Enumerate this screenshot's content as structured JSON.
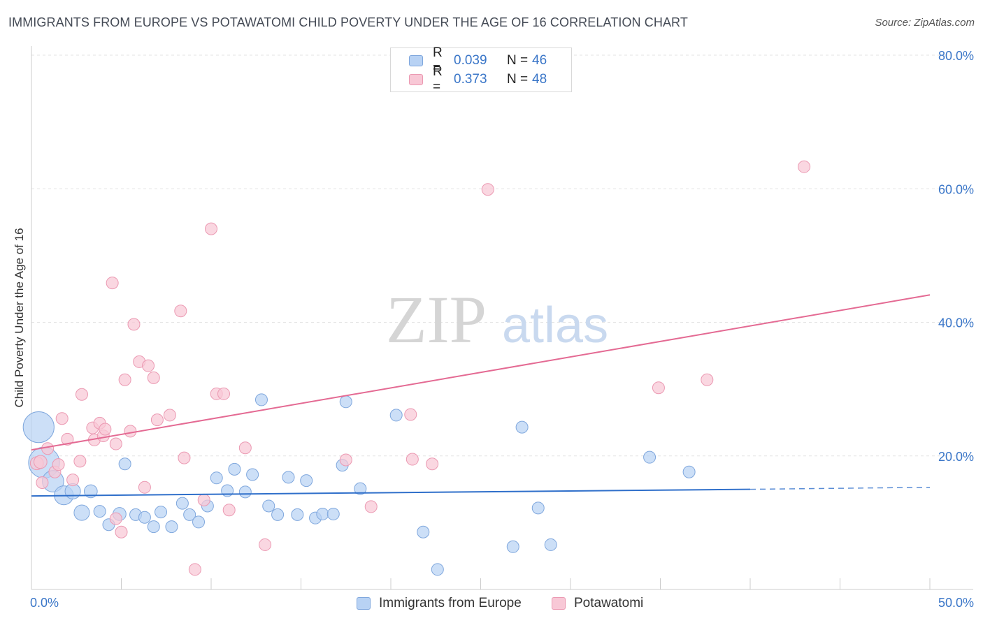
{
  "title": "IMMIGRANTS FROM EUROPE VS POTAWATOMI CHILD POVERTY UNDER THE AGE OF 16 CORRELATION CHART",
  "source": "Source: ZipAtlas.com",
  "watermark": {
    "zip": "ZIP",
    "atlas": "atlas"
  },
  "legend": {
    "r_label": "R =",
    "n_label": "N =",
    "series1": {
      "r": "0.039",
      "n": "46"
    },
    "series2": {
      "r": "0.373",
      "n": "48"
    }
  },
  "colors": {
    "europe_fill": "#b8d2f4",
    "europe_stroke": "#7fa7dd",
    "europe_line": "#2f6fca",
    "potawatomi_fill": "#f8c8d6",
    "potawatomi_stroke": "#eb99b2",
    "potawatomi_line": "#e46a93",
    "tick_text": "#3a76c8"
  },
  "chart_data": {
    "type": "scatter",
    "title": "IMMIGRANTS FROM EUROPE VS POTAWATOMI CHILD POVERTY UNDER THE AGE OF 16 CORRELATION CHART",
    "xlabel": "",
    "ylabel": "Child Poverty Under the Age of 16",
    "xlim": [
      0,
      50
    ],
    "ylim": [
      0,
      80
    ],
    "x_tick_labels": [
      "0.0%",
      "50.0%"
    ],
    "y_ticks": [
      20,
      40,
      60,
      80
    ],
    "y_tick_labels": [
      "20.0%",
      "40.0%",
      "60.0%",
      "80.0%"
    ],
    "grid": true,
    "legend_position": "top-center",
    "series": [
      {
        "name": "Immigrants from Europe",
        "r": 0.039,
        "n": 46,
        "trend": {
          "x0": 0,
          "y0": 14.0,
          "x1": 40,
          "y1": 15.0,
          "dashed_to": 50,
          "dashed_y": 15.3
        },
        "points": [
          {
            "x": 0.4,
            "y": 24.3,
            "s": 2.6
          },
          {
            "x": 0.7,
            "y": 19.0,
            "s": 2.6
          },
          {
            "x": 1.2,
            "y": 16.2,
            "s": 1.8
          },
          {
            "x": 1.8,
            "y": 14.1,
            "s": 1.6
          },
          {
            "x": 2.3,
            "y": 14.7,
            "s": 1.3
          },
          {
            "x": 2.8,
            "y": 11.5,
            "s": 1.3
          },
          {
            "x": 3.3,
            "y": 14.7,
            "s": 1.1
          },
          {
            "x": 3.8,
            "y": 11.7,
            "s": 1.0
          },
          {
            "x": 4.3,
            "y": 9.7,
            "s": 1.0
          },
          {
            "x": 4.9,
            "y": 11.3,
            "s": 1.1
          },
          {
            "x": 5.2,
            "y": 18.8,
            "s": 1.0
          },
          {
            "x": 5.8,
            "y": 11.2,
            "s": 1.0
          },
          {
            "x": 6.3,
            "y": 10.8,
            "s": 1.0
          },
          {
            "x": 6.8,
            "y": 9.4,
            "s": 1.0
          },
          {
            "x": 7.2,
            "y": 11.6,
            "s": 1.0
          },
          {
            "x": 7.8,
            "y": 9.4,
            "s": 1.0
          },
          {
            "x": 8.4,
            "y": 12.9,
            "s": 1.0
          },
          {
            "x": 8.8,
            "y": 11.2,
            "s": 1.0
          },
          {
            "x": 9.3,
            "y": 10.1,
            "s": 1.0
          },
          {
            "x": 9.8,
            "y": 12.5,
            "s": 1.0
          },
          {
            "x": 10.3,
            "y": 16.7,
            "s": 1.0
          },
          {
            "x": 10.9,
            "y": 14.8,
            "s": 1.0
          },
          {
            "x": 11.3,
            "y": 18.0,
            "s": 1.0
          },
          {
            "x": 11.9,
            "y": 14.6,
            "s": 1.0
          },
          {
            "x": 12.3,
            "y": 17.2,
            "s": 1.0
          },
          {
            "x": 12.8,
            "y": 28.4,
            "s": 1.0
          },
          {
            "x": 13.2,
            "y": 12.5,
            "s": 1.0
          },
          {
            "x": 13.7,
            "y": 11.2,
            "s": 1.0
          },
          {
            "x": 14.3,
            "y": 16.8,
            "s": 1.0
          },
          {
            "x": 14.8,
            "y": 11.2,
            "s": 1.0
          },
          {
            "x": 15.3,
            "y": 16.3,
            "s": 1.0
          },
          {
            "x": 15.8,
            "y": 10.7,
            "s": 1.0
          },
          {
            "x": 16.2,
            "y": 11.3,
            "s": 1.0
          },
          {
            "x": 16.8,
            "y": 11.3,
            "s": 1.0
          },
          {
            "x": 17.3,
            "y": 18.6,
            "s": 1.0
          },
          {
            "x": 17.5,
            "y": 28.1,
            "s": 1.0
          },
          {
            "x": 18.3,
            "y": 15.1,
            "s": 1.0
          },
          {
            "x": 20.3,
            "y": 26.1,
            "s": 1.0
          },
          {
            "x": 21.8,
            "y": 8.6,
            "s": 1.0
          },
          {
            "x": 22.6,
            "y": 3.0,
            "s": 1.0
          },
          {
            "x": 26.8,
            "y": 6.4,
            "s": 1.0
          },
          {
            "x": 27.3,
            "y": 24.3,
            "s": 1.0
          },
          {
            "x": 28.2,
            "y": 12.2,
            "s": 1.0
          },
          {
            "x": 28.9,
            "y": 6.7,
            "s": 1.0
          },
          {
            "x": 34.4,
            "y": 19.8,
            "s": 1.0
          },
          {
            "x": 36.6,
            "y": 17.6,
            "s": 1.0
          }
        ]
      },
      {
        "name": "Potawatomi",
        "r": 0.373,
        "n": 48,
        "trend": {
          "x0": 0,
          "y0": 20.9,
          "x1": 50,
          "y1": 44.1
        },
        "points": [
          {
            "x": 0.3,
            "y": 18.9,
            "s": 1.1
          },
          {
            "x": 0.5,
            "y": 19.1,
            "s": 1.1
          },
          {
            "x": 0.6,
            "y": 16.0,
            "s": 1.0
          },
          {
            "x": 0.9,
            "y": 21.1,
            "s": 1.0
          },
          {
            "x": 1.3,
            "y": 17.6,
            "s": 1.0
          },
          {
            "x": 1.5,
            "y": 18.7,
            "s": 1.0
          },
          {
            "x": 1.7,
            "y": 25.6,
            "s": 1.0
          },
          {
            "x": 2.0,
            "y": 22.5,
            "s": 1.0
          },
          {
            "x": 2.3,
            "y": 16.4,
            "s": 1.0
          },
          {
            "x": 2.7,
            "y": 19.2,
            "s": 1.0
          },
          {
            "x": 2.8,
            "y": 29.2,
            "s": 1.0
          },
          {
            "x": 3.4,
            "y": 24.2,
            "s": 1.0
          },
          {
            "x": 3.5,
            "y": 22.4,
            "s": 1.0
          },
          {
            "x": 3.8,
            "y": 24.9,
            "s": 1.0
          },
          {
            "x": 4.0,
            "y": 23.0,
            "s": 1.0
          },
          {
            "x": 4.1,
            "y": 24.0,
            "s": 1.0
          },
          {
            "x": 4.5,
            "y": 45.9,
            "s": 1.0
          },
          {
            "x": 4.7,
            "y": 21.8,
            "s": 1.0
          },
          {
            "x": 4.7,
            "y": 10.6,
            "s": 1.0
          },
          {
            "x": 5.0,
            "y": 8.6,
            "s": 1.0
          },
          {
            "x": 5.2,
            "y": 31.4,
            "s": 1.0
          },
          {
            "x": 5.5,
            "y": 23.7,
            "s": 1.0
          },
          {
            "x": 5.7,
            "y": 39.7,
            "s": 1.0
          },
          {
            "x": 6.0,
            "y": 34.1,
            "s": 1.0
          },
          {
            "x": 6.3,
            "y": 15.3,
            "s": 1.0
          },
          {
            "x": 6.5,
            "y": 33.5,
            "s": 1.0
          },
          {
            "x": 6.8,
            "y": 31.7,
            "s": 1.0
          },
          {
            "x": 7.0,
            "y": 25.4,
            "s": 1.0
          },
          {
            "x": 7.7,
            "y": 26.1,
            "s": 1.0
          },
          {
            "x": 8.3,
            "y": 41.7,
            "s": 1.0
          },
          {
            "x": 8.5,
            "y": 19.7,
            "s": 1.0
          },
          {
            "x": 9.1,
            "y": 3.0,
            "s": 1.0
          },
          {
            "x": 9.6,
            "y": 13.4,
            "s": 1.0
          },
          {
            "x": 10.0,
            "y": 54.0,
            "s": 1.0
          },
          {
            "x": 10.3,
            "y": 29.3,
            "s": 1.0
          },
          {
            "x": 10.7,
            "y": 29.3,
            "s": 1.0
          },
          {
            "x": 11.0,
            "y": 11.9,
            "s": 1.0
          },
          {
            "x": 11.9,
            "y": 21.2,
            "s": 1.0
          },
          {
            "x": 13.0,
            "y": 6.7,
            "s": 1.0
          },
          {
            "x": 17.5,
            "y": 19.4,
            "s": 1.0
          },
          {
            "x": 18.9,
            "y": 12.4,
            "s": 1.0
          },
          {
            "x": 21.1,
            "y": 26.2,
            "s": 1.0
          },
          {
            "x": 21.2,
            "y": 19.5,
            "s": 1.0
          },
          {
            "x": 22.3,
            "y": 18.8,
            "s": 1.0
          },
          {
            "x": 25.4,
            "y": 59.9,
            "s": 1.0
          },
          {
            "x": 34.9,
            "y": 30.2,
            "s": 1.0
          },
          {
            "x": 37.6,
            "y": 31.4,
            "s": 1.0
          },
          {
            "x": 43.0,
            "y": 63.3,
            "s": 1.0
          }
        ]
      }
    ]
  }
}
